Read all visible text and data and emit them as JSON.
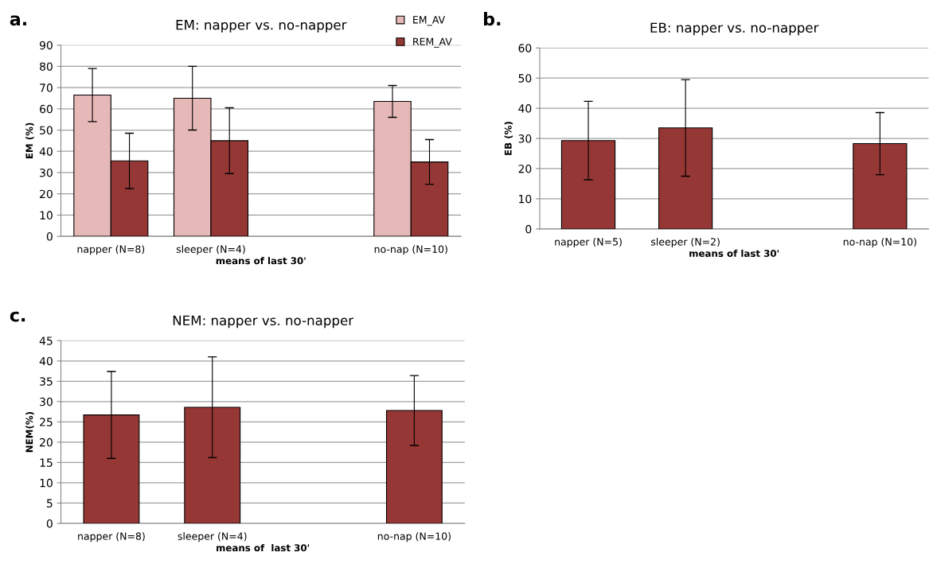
{
  "chart_data": [
    {
      "type": "bar",
      "title": "EM: napper vs. no-napper",
      "xlabel": "means of last 30'",
      "ylabel": "EM (%)",
      "annotations": [
        "a."
      ],
      "categories": [
        "napper (N=8)",
        "sleeper (N=4)",
        null,
        "no-nap (N=10)"
      ],
      "series": [
        {
          "name": "EM_AV",
          "color": "#e6b8b7",
          "values": [
            66.5,
            65,
            null,
            63.5
          ],
          "errors": [
            12.5,
            15,
            null,
            7.5
          ]
        },
        {
          "name": "REM_AV",
          "color": "#953735",
          "values": [
            35.5,
            45,
            null,
            35
          ],
          "errors": [
            13,
            15.5,
            null,
            10.5
          ]
        }
      ],
      "ylim": [
        0,
        90
      ],
      "yticks": [
        0,
        10,
        20,
        30,
        40,
        50,
        60,
        70,
        80,
        90
      ],
      "grid": "y",
      "legend": "top right"
    },
    {
      "type": "bar",
      "title": "EB: napper vs. no-napper",
      "xlabel": "means of last 30'",
      "ylabel": "EB (%)",
      "annotations": [
        "b."
      ],
      "categories": [
        "napper (N=5)",
        "sleeper (N=2)",
        null,
        "no-nap (N=10)"
      ],
      "series": [
        {
          "color": "#953735",
          "values": [
            29.3,
            33.5,
            null,
            28.3
          ],
          "errors": [
            13,
            16,
            null,
            10.3
          ]
        }
      ],
      "ylim": [
        0,
        60
      ],
      "yticks": [
        0,
        10,
        20,
        30,
        40,
        50,
        60
      ],
      "grid": "y"
    },
    {
      "type": "bar",
      "title": "NEM: napper vs. no-napper",
      "xlabel": "means of  last 30'",
      "ylabel": "NEM(%)",
      "annotations": [
        "c."
      ],
      "categories": [
        "napper (N=8)",
        "sleeper (N=4)",
        null,
        "no-nap (N=10)"
      ],
      "series": [
        {
          "color": "#953735",
          "values": [
            26.7,
            28.6,
            null,
            27.8
          ],
          "errors": [
            10.7,
            12.4,
            null,
            8.6
          ]
        }
      ],
      "ylim": [
        0,
        45
      ],
      "yticks": [
        0,
        5,
        10,
        15,
        20,
        25,
        30,
        35,
        40,
        45
      ],
      "grid": "y"
    }
  ]
}
